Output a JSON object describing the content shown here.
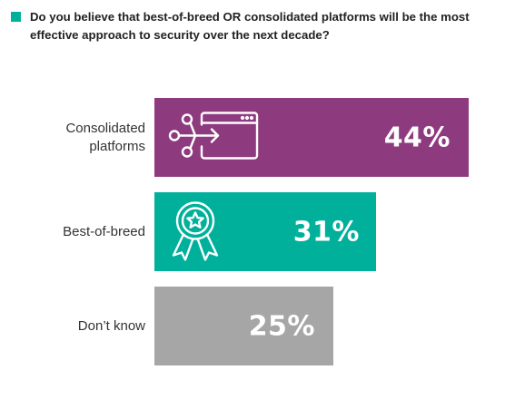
{
  "chart_data": {
    "type": "bar",
    "orientation": "horizontal",
    "title": "Do you believe that best-of-breed OR consolidated platforms will be the most effective approach to security over the next decade?",
    "categories": [
      "Consolidated platforms",
      "Best-of-breed",
      "Don’t know"
    ],
    "category_lines": [
      [
        "Consolidated",
        "platforms"
      ],
      [
        "Best-of-breed"
      ],
      [
        "Don’t know"
      ]
    ],
    "values": [
      44,
      31,
      25
    ],
    "value_labels": [
      "44%",
      "31%",
      "25%"
    ],
    "unit": "%",
    "colors": [
      "#8e3a7f",
      "#00b09b",
      "#a6a6a6"
    ],
    "icons": [
      "network-window-icon",
      "award-ribbon-icon",
      null
    ],
    "grid": false,
    "legend": "none"
  },
  "accent_color": "#00b09b"
}
